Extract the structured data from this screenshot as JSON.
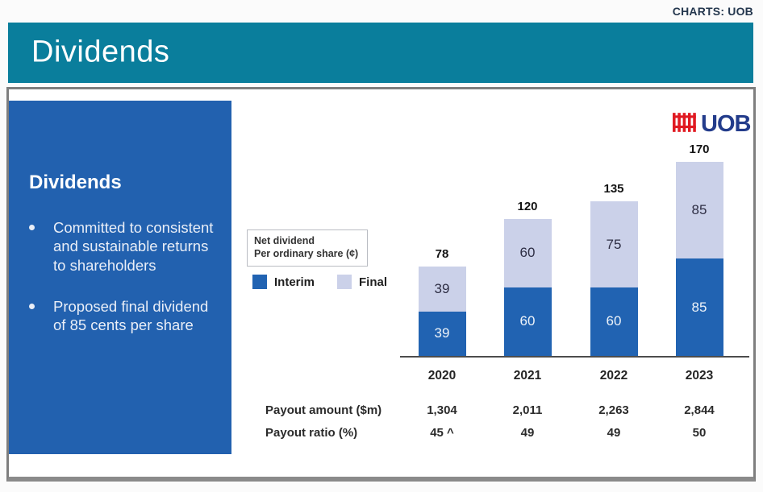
{
  "page": {
    "corner_note": "CHARTS: UOB",
    "title": "Dividends"
  },
  "panel": {
    "heading": "Dividends",
    "bullets": [
      "Committed to consistent and sustainable returns to shareholders",
      "Proposed final dividend of 85 cents per share"
    ]
  },
  "logo": {
    "text": "UOB",
    "icon_color": "#e01a22",
    "text_color": "#233c8b"
  },
  "colors": {
    "header_teal": "#0a7e9c",
    "panel_blue": "#2261af",
    "interim_blue": "#2163b2",
    "final_lavender": "#cbd1e9"
  },
  "chart_data": {
    "type": "bar",
    "stacked": true,
    "note_lines": [
      "Net dividend",
      "Per ordinary share (¢)"
    ],
    "categories": [
      "2020",
      "2021",
      "2022",
      "2023"
    ],
    "series": [
      {
        "name": "Interim",
        "color": "#2163b2",
        "values": [
          39,
          60,
          60,
          85
        ]
      },
      {
        "name": "Final",
        "color": "#cbd1e9",
        "values": [
          39,
          60,
          75,
          85
        ]
      }
    ],
    "totals": [
      78,
      120,
      135,
      170
    ],
    "ylabel": "Net dividend per ordinary share (¢)",
    "ylim": [
      0,
      180
    ],
    "grid": false,
    "legend_position": "left-middle",
    "table": {
      "rows": [
        {
          "label": "Payout amount ($m)",
          "values": [
            "1,304",
            "2,011",
            "2,263",
            "2,844"
          ]
        },
        {
          "label": "Payout ratio (%)",
          "values": [
            "45 ^",
            "49",
            "49",
            "50"
          ]
        }
      ]
    }
  }
}
